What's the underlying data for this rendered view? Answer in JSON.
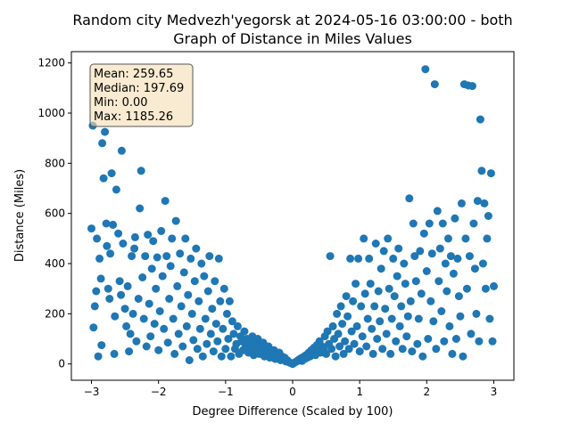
{
  "chart_data": {
    "type": "scatter",
    "title_line1": "Random city Medvezh'yegorsk at 2024-05-16 03:00:00  - both",
    "title_line2": "Graph of Distance in Miles Values",
    "xlabel": "Degree Difference (Scaled by 100)",
    "ylabel": "Distance (Miles)",
    "xlim": [
      -3.3,
      3.3
    ],
    "ylim": [
      -65,
      1245
    ],
    "xticks": [
      -3,
      -2,
      -1,
      0,
      1,
      2,
      3
    ],
    "yticks": [
      0,
      200,
      400,
      600,
      800,
      1000,
      1200
    ],
    "grid": false,
    "marker_color": "#1f77b4",
    "stats_box": {
      "mean": "Mean: 259.65",
      "median": "Median: 197.69",
      "min": "Min: 0.00",
      "max": "Max: 1185.26",
      "placement": "top-left",
      "facecolor": "#f5deb3"
    },
    "series": [
      {
        "points": [
          [
            -3.0,
            540
          ],
          [
            -2.98,
            950
          ],
          [
            -2.95,
            230
          ],
          [
            -2.97,
            145
          ],
          [
            -2.93,
            290
          ],
          [
            -2.92,
            500
          ],
          [
            -2.9,
            30
          ],
          [
            -2.88,
            420
          ],
          [
            -2.86,
            340
          ],
          [
            -2.85,
            75
          ],
          [
            -2.84,
            880
          ],
          [
            -2.82,
            740
          ],
          [
            -2.8,
            925
          ],
          [
            -2.78,
            560
          ],
          [
            -2.77,
            470
          ],
          [
            -2.75,
            300
          ],
          [
            -2.73,
            260
          ],
          [
            -2.72,
            440
          ],
          [
            -2.7,
            760
          ],
          [
            -2.68,
            555
          ],
          [
            -2.66,
            40
          ],
          [
            -2.65,
            190
          ],
          [
            -2.63,
            695
          ],
          [
            -2.6,
            520
          ],
          [
            -2.58,
            330
          ],
          [
            -2.56,
            275
          ],
          [
            -2.55,
            850
          ],
          [
            -2.53,
            480
          ],
          [
            -2.5,
            220
          ],
          [
            -2.48,
            150
          ],
          [
            -2.46,
            310
          ],
          [
            -2.44,
            50
          ],
          [
            -2.42,
            120
          ],
          [
            -2.4,
            430
          ],
          [
            -2.38,
            200
          ],
          [
            -2.36,
            460
          ],
          [
            -2.35,
            505
          ],
          [
            -2.33,
            90
          ],
          [
            -2.3,
            260
          ],
          [
            -2.28,
            620
          ],
          [
            -2.26,
            770
          ],
          [
            -2.24,
            345
          ],
          [
            -2.22,
            180
          ],
          [
            -2.2,
            430
          ],
          [
            -2.18,
            70
          ],
          [
            -2.16,
            515
          ],
          [
            -2.14,
            240
          ],
          [
            -2.12,
            110
          ],
          [
            -2.1,
            380
          ],
          [
            -2.08,
            490
          ],
          [
            -2.06,
            160
          ],
          [
            -2.04,
            300
          ],
          [
            -2.02,
            425
          ],
          [
            -2.0,
            55
          ],
          [
            -1.98,
            210
          ],
          [
            -1.96,
            530
          ],
          [
            -1.94,
            350
          ],
          [
            -1.92,
            140
          ],
          [
            -1.9,
            650
          ],
          [
            -1.88,
            430
          ],
          [
            -1.86,
            85
          ],
          [
            -1.84,
            260
          ],
          [
            -1.82,
            390
          ],
          [
            -1.8,
            500
          ],
          [
            -1.78,
            180
          ],
          [
            -1.76,
            40
          ],
          [
            -1.74,
            570
          ],
          [
            -1.72,
            310
          ],
          [
            -1.7,
            120
          ],
          [
            -1.68,
            440
          ],
          [
            -1.66,
            230
          ],
          [
            -1.64,
            70
          ],
          [
            -1.62,
            365
          ],
          [
            -1.6,
            500
          ],
          [
            -1.58,
            150
          ],
          [
            -1.56,
            275
          ],
          [
            -1.54,
            15
          ],
          [
            -1.52,
            420
          ],
          [
            -1.5,
            200
          ],
          [
            -1.48,
            95
          ],
          [
            -1.46,
            330
          ],
          [
            -1.44,
            460
          ],
          [
            -1.42,
            60
          ],
          [
            -1.4,
            250
          ],
          [
            -1.38,
            140
          ],
          [
            -1.36,
            400
          ],
          [
            -1.34,
            30
          ],
          [
            -1.32,
            350
          ],
          [
            -1.3,
            180
          ],
          [
            -1.28,
            80
          ],
          [
            -1.26,
            290
          ],
          [
            -1.24,
            430
          ],
          [
            -1.22,
            120
          ],
          [
            -1.2,
            220
          ],
          [
            -1.18,
            50
          ],
          [
            -1.16,
            330
          ],
          [
            -1.14,
            160
          ],
          [
            -1.12,
            90
          ],
          [
            -1.1,
            420
          ],
          [
            -1.08,
            250
          ],
          [
            -1.06,
            30
          ],
          [
            -1.04,
            140
          ],
          [
            -1.02,
            300
          ],
          [
            -1.0,
            60
          ],
          [
            -0.98,
            200
          ],
          [
            -0.96,
            100
          ],
          [
            -0.94,
            250
          ],
          [
            -0.92,
            30
          ],
          [
            -0.9,
            170
          ],
          [
            -0.88,
            120
          ],
          [
            -0.86,
            60
          ],
          [
            -0.84,
            80
          ],
          [
            -0.82,
            150
          ],
          [
            -0.8,
            40
          ],
          [
            -0.78,
            110
          ],
          [
            -0.76,
            90
          ],
          [
            -0.74,
            55
          ],
          [
            -0.72,
            130
          ],
          [
            -0.7,
            75
          ],
          [
            -0.68,
            100
          ],
          [
            -0.66,
            45
          ],
          [
            -0.64,
            95
          ],
          [
            -0.62,
            65
          ],
          [
            -0.6,
            110
          ],
          [
            -0.58,
            35
          ],
          [
            -0.56,
            80
          ],
          [
            -0.54,
            60
          ],
          [
            -0.52,
            100
          ],
          [
            -0.5,
            40
          ],
          [
            -0.48,
            75
          ],
          [
            -0.46,
            55
          ],
          [
            -0.44,
            85
          ],
          [
            -0.42,
            30
          ],
          [
            -0.4,
            65
          ],
          [
            -0.38,
            45
          ],
          [
            -0.36,
            70
          ],
          [
            -0.34,
            25
          ],
          [
            -0.32,
            50
          ],
          [
            -0.3,
            35
          ],
          [
            -0.28,
            55
          ],
          [
            -0.26,
            20
          ],
          [
            -0.24,
            40
          ],
          [
            -0.22,
            30
          ],
          [
            -0.2,
            45
          ],
          [
            -0.18,
            15
          ],
          [
            -0.16,
            30
          ],
          [
            -0.14,
            20
          ],
          [
            -0.12,
            25
          ],
          [
            -0.1,
            10
          ],
          [
            -0.08,
            15
          ],
          [
            -0.06,
            8
          ],
          [
            -0.04,
            5
          ],
          [
            -0.02,
            3
          ],
          [
            0.0,
            0
          ],
          [
            0.02,
            4
          ],
          [
            0.04,
            7
          ],
          [
            0.06,
            10
          ],
          [
            0.08,
            14
          ],
          [
            0.1,
            18
          ],
          [
            0.12,
            22
          ],
          [
            0.14,
            12
          ],
          [
            0.16,
            28
          ],
          [
            0.18,
            20
          ],
          [
            0.2,
            35
          ],
          [
            0.22,
            25
          ],
          [
            0.24,
            45
          ],
          [
            0.26,
            30
          ],
          [
            0.28,
            55
          ],
          [
            0.3,
            40
          ],
          [
            0.32,
            65
          ],
          [
            0.34,
            35
          ],
          [
            0.36,
            75
          ],
          [
            0.38,
            50
          ],
          [
            0.4,
            90
          ],
          [
            0.42,
            45
          ],
          [
            0.44,
            70
          ],
          [
            0.46,
            60
          ],
          [
            0.48,
            110
          ],
          [
            0.5,
            40
          ],
          [
            0.52,
            130
          ],
          [
            0.54,
            80
          ],
          [
            0.56,
            430
          ],
          [
            0.58,
            60
          ],
          [
            0.6,
            150
          ],
          [
            0.62,
            100
          ],
          [
            0.64,
            30
          ],
          [
            0.66,
            200
          ],
          [
            0.68,
            120
          ],
          [
            0.7,
            70
          ],
          [
            0.72,
            230
          ],
          [
            0.74,
            160
          ],
          [
            0.76,
            40
          ],
          [
            0.78,
            90
          ],
          [
            0.8,
            270
          ],
          [
            0.82,
            190
          ],
          [
            0.84,
            60
          ],
          [
            0.86,
            420
          ],
          [
            0.88,
            130
          ],
          [
            0.9,
            250
          ],
          [
            0.92,
            80
          ],
          [
            0.94,
            320
          ],
          [
            0.96,
            150
          ],
          [
            0.98,
            420
          ],
          [
            1.0,
            50
          ],
          [
            1.02,
            230
          ],
          [
            1.04,
            110
          ],
          [
            1.06,
            500
          ],
          [
            1.08,
            280
          ],
          [
            1.1,
            70
          ],
          [
            1.12,
            180
          ],
          [
            1.14,
            420
          ],
          [
            1.16,
            320
          ],
          [
            1.18,
            140
          ],
          [
            1.2,
            40
          ],
          [
            1.22,
            230
          ],
          [
            1.24,
            480
          ],
          [
            1.26,
            100
          ],
          [
            1.28,
            290
          ],
          [
            1.3,
            170
          ],
          [
            1.32,
            380
          ],
          [
            1.34,
            60
          ],
          [
            1.36,
            450
          ],
          [
            1.38,
            220
          ],
          [
            1.4,
            120
          ],
          [
            1.42,
            500
          ],
          [
            1.44,
            300
          ],
          [
            1.46,
            40
          ],
          [
            1.48,
            180
          ],
          [
            1.5,
            420
          ],
          [
            1.52,
            270
          ],
          [
            1.54,
            90
          ],
          [
            1.56,
            350
          ],
          [
            1.58,
            460
          ],
          [
            1.6,
            150
          ],
          [
            1.62,
            230
          ],
          [
            1.64,
            60
          ],
          [
            1.66,
            400
          ],
          [
            1.68,
            320
          ],
          [
            1.7,
            110
          ],
          [
            1.72,
            190
          ],
          [
            1.74,
            660
          ],
          [
            1.76,
            250
          ],
          [
            1.78,
            50
          ],
          [
            1.8,
            560
          ],
          [
            1.82,
            430
          ],
          [
            1.84,
            330
          ],
          [
            1.86,
            80
          ],
          [
            1.88,
            180
          ],
          [
            1.9,
            450
          ],
          [
            1.92,
            280
          ],
          [
            1.94,
            30
          ],
          [
            1.96,
            520
          ],
          [
            1.98,
            1175
          ],
          [
            2.0,
            370
          ],
          [
            2.02,
            100
          ],
          [
            2.04,
            560
          ],
          [
            2.06,
            250
          ],
          [
            2.08,
            440
          ],
          [
            2.1,
            170
          ],
          [
            2.12,
            1115
          ],
          [
            2.14,
            60
          ],
          [
            2.16,
            610
          ],
          [
            2.18,
            330
          ],
          [
            2.2,
            460
          ],
          [
            2.22,
            210
          ],
          [
            2.24,
            560
          ],
          [
            2.26,
            90
          ],
          [
            2.28,
            400
          ],
          [
            2.3,
            290
          ],
          [
            2.32,
            500
          ],
          [
            2.34,
            150
          ],
          [
            2.36,
            430
          ],
          [
            2.38,
            40
          ],
          [
            2.4,
            360
          ],
          [
            2.42,
            580
          ],
          [
            2.44,
            100
          ],
          [
            2.46,
            420
          ],
          [
            2.48,
            270
          ],
          [
            2.5,
            190
          ],
          [
            2.52,
            640
          ],
          [
            2.54,
            30
          ],
          [
            2.56,
            1115
          ],
          [
            2.58,
            500
          ],
          [
            2.6,
            300
          ],
          [
            2.62,
            1110
          ],
          [
            2.64,
            430
          ],
          [
            2.66,
            120
          ],
          [
            2.68,
            1108
          ],
          [
            2.7,
            560
          ],
          [
            2.72,
            380
          ],
          [
            2.74,
            200
          ],
          [
            2.76,
            650
          ],
          [
            2.78,
            90
          ],
          [
            2.8,
            975
          ],
          [
            2.82,
            770
          ],
          [
            2.84,
            400
          ],
          [
            2.86,
            640
          ],
          [
            2.88,
            300
          ],
          [
            2.9,
            500
          ],
          [
            2.92,
            590
          ],
          [
            2.94,
            180
          ],
          [
            2.96,
            760
          ],
          [
            2.98,
            90
          ],
          [
            3.0,
            310
          ]
        ]
      }
    ]
  }
}
